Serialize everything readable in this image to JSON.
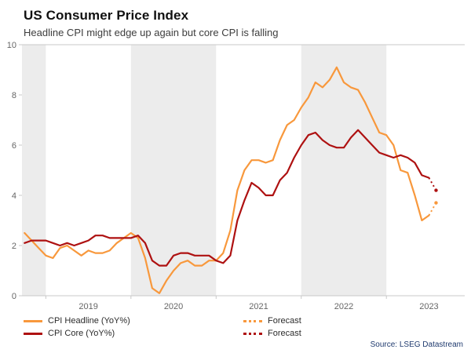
{
  "header": {
    "title": "US Consumer Price Index",
    "subtitle": "Headline CPI might edge up again but core CPI is falling"
  },
  "source": "Source: LSEG Datastream",
  "colors": {
    "headline": "#F8983C",
    "core": "#AE1111",
    "band": "#ECECEC",
    "axis": "#C8C8C8",
    "tick_label": "#666666",
    "source_text": "#1F3A6E"
  },
  "legend": [
    {
      "label": "CPI Headline (YoY%)",
      "color_key": "headline",
      "style": "solid"
    },
    {
      "label": "Forecast",
      "color_key": "headline",
      "style": "dotted"
    },
    {
      "label": "CPI Core (YoY%)",
      "color_key": "core",
      "style": "solid"
    },
    {
      "label": "Forecast",
      "color_key": "core",
      "style": "dotted"
    }
  ],
  "chart_data": {
    "type": "line",
    "title": "US Consumer Price Index",
    "subtitle": "Headline CPI might edge up again but core CPI is falling",
    "xlabel": "",
    "ylabel": "",
    "ylim": [
      0,
      10
    ],
    "yticks": [
      0,
      2,
      4,
      6,
      8,
      10
    ],
    "xlim": [
      2018.72,
      2023.92
    ],
    "year_ticks": [
      2019,
      2020,
      2021,
      2022,
      2023
    ],
    "shaded_years": [
      2018,
      2020,
      2022
    ],
    "x_start": {
      "year": 2018,
      "month": 10
    },
    "frequency": "monthly",
    "series": [
      {
        "name": "CPI Headline (YoY%)",
        "color_key": "headline",
        "values": [
          2.5,
          2.2,
          1.9,
          1.6,
          1.5,
          1.9,
          2.0,
          1.8,
          1.6,
          1.8,
          1.7,
          1.7,
          1.8,
          2.1,
          2.3,
          2.5,
          2.3,
          1.5,
          0.3,
          0.1,
          0.6,
          1.0,
          1.3,
          1.4,
          1.2,
          1.2,
          1.4,
          1.4,
          1.7,
          2.6,
          4.2,
          5.0,
          5.4,
          5.4,
          5.3,
          5.4,
          6.2,
          6.8,
          7.0,
          7.5,
          7.9,
          8.5,
          8.3,
          8.6,
          9.1,
          8.5,
          8.3,
          8.2,
          7.7,
          7.1,
          6.5,
          6.4,
          6.0,
          5.0,
          4.9,
          4.0,
          3.0,
          3.2
        ],
        "forecast": [
          3.7
        ]
      },
      {
        "name": "CPI Core (YoY%)",
        "color_key": "core",
        "values": [
          2.1,
          2.2,
          2.2,
          2.2,
          2.1,
          2.0,
          2.1,
          2.0,
          2.1,
          2.2,
          2.4,
          2.4,
          2.3,
          2.3,
          2.3,
          2.3,
          2.4,
          2.1,
          1.4,
          1.2,
          1.2,
          1.6,
          1.7,
          1.7,
          1.6,
          1.6,
          1.6,
          1.4,
          1.3,
          1.6,
          3.0,
          3.8,
          4.5,
          4.3,
          4.0,
          4.0,
          4.6,
          4.9,
          5.5,
          6.0,
          6.4,
          6.5,
          6.2,
          6.0,
          5.9,
          5.9,
          6.3,
          6.6,
          6.3,
          6.0,
          5.7,
          5.6,
          5.5,
          5.6,
          5.5,
          5.3,
          4.8,
          4.7
        ],
        "forecast": [
          4.2
        ]
      }
    ]
  }
}
